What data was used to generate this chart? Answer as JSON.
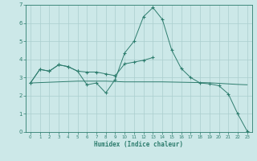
{
  "xlabel": "Humidex (Indice chaleur)",
  "x_values": [
    0,
    1,
    2,
    3,
    4,
    5,
    6,
    7,
    8,
    9,
    10,
    11,
    12,
    13,
    14,
    15,
    16,
    17,
    18,
    19,
    20,
    21,
    22,
    23
  ],
  "line1_y": [
    2.7,
    3.45,
    3.35,
    3.7,
    3.6,
    3.35,
    2.6,
    2.7,
    2.15,
    2.9,
    4.35,
    5.0,
    6.35,
    6.85,
    6.2,
    4.5,
    3.5,
    3.0,
    2.7,
    2.65,
    2.55,
    2.1,
    1.0,
    0.05
  ],
  "line2_y": [
    2.7,
    3.45,
    3.35,
    3.7,
    3.6,
    3.35,
    3.3,
    3.3,
    3.2,
    3.1,
    3.75,
    3.85,
    3.95,
    4.1,
    null,
    null,
    null,
    null,
    null,
    null,
    null,
    null,
    null,
    null
  ],
  "line3_y": [
    2.7,
    2.72,
    2.74,
    2.76,
    2.78,
    2.8,
    2.8,
    2.8,
    2.8,
    2.78,
    2.76,
    2.76,
    2.76,
    2.76,
    2.76,
    2.75,
    2.74,
    2.73,
    2.72,
    2.71,
    2.68,
    2.65,
    2.62,
    2.6
  ],
  "color": "#2e7d6e",
  "bg_color": "#cce8e8",
  "grid_color": "#aacece",
  "ylim": [
    0,
    7
  ],
  "xlim": [
    -0.5,
    23.5
  ],
  "yticks": [
    0,
    1,
    2,
    3,
    4,
    5,
    6,
    7
  ],
  "xticks": [
    0,
    1,
    2,
    3,
    4,
    5,
    6,
    7,
    8,
    9,
    10,
    11,
    12,
    13,
    14,
    15,
    16,
    17,
    18,
    19,
    20,
    21,
    22,
    23
  ]
}
